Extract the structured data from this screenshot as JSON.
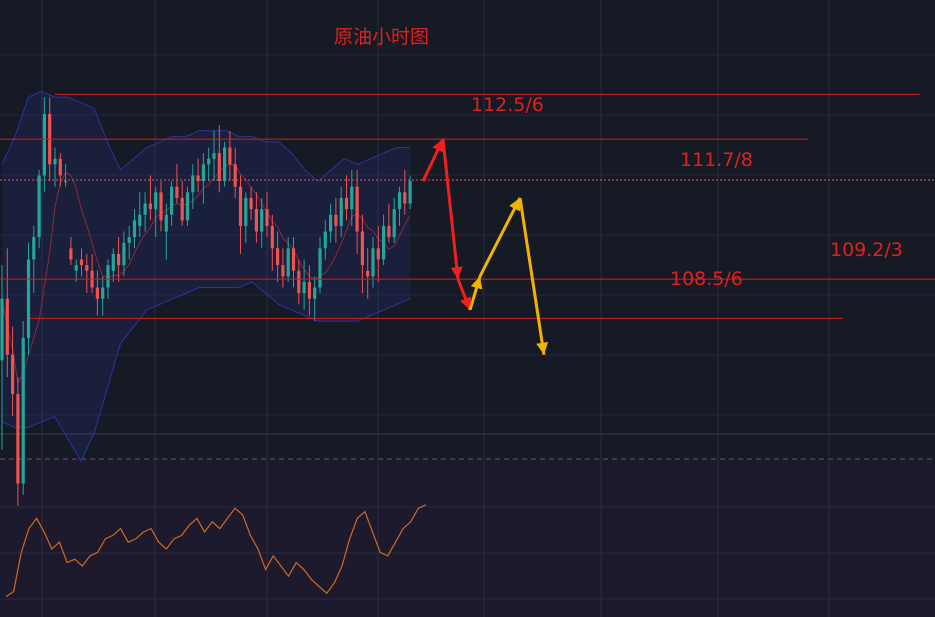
{
  "title": "原油小时图",
  "levels": [
    {
      "label": "112.5/6",
      "value": 112.55
    },
    {
      "label": "111.7/8",
      "value": 111.75
    },
    {
      "label": "109.2/3",
      "value": 109.25
    },
    {
      "label": "108.5/6",
      "value": 108.55
    }
  ],
  "colors": {
    "background": "#161a25",
    "level_line": "#d0201e",
    "level_text": "#e0201e",
    "bull": "#26a69a",
    "bear": "#ef5350",
    "band": "#2a35a0",
    "forecast_red": "#f0201e",
    "forecast_yellow": "#f0b400",
    "oscillator": "#d06a1e",
    "current_price": "#e05a5a"
  },
  "chart_data": {
    "type": "candlestick",
    "title": "原油小时图",
    "current_price": 111.02,
    "upper_band": [
      111.3,
      111.8,
      112.5,
      112.6,
      112.5,
      112.5,
      112.4,
      112.3,
      111.7,
      111.2,
      111.4,
      111.6,
      111.7,
      111.8,
      111.8,
      111.9,
      111.9,
      111.9,
      111.8,
      111.8,
      111.7,
      111.7,
      111.5,
      111.2,
      111.0,
      111.2,
      111.4,
      111.3,
      111.4,
      111.5,
      111.6,
      111.6
    ],
    "lower_band": [
      106.7,
      106.6,
      106.6,
      106.7,
      106.8,
      106.4,
      106.0,
      106.5,
      107.3,
      108.1,
      108.4,
      108.7,
      108.8,
      108.9,
      109.0,
      109.1,
      109.1,
      109.1,
      109.1,
      109.2,
      109.0,
      108.8,
      108.7,
      108.6,
      108.5,
      108.5,
      108.5,
      108.5,
      108.6,
      108.7,
      108.8,
      108.9
    ],
    "candles": [
      [
        107.8,
        109.5,
        106.2,
        108.9
      ],
      [
        108.9,
        109.8,
        107.5,
        107.9
      ],
      [
        107.9,
        108.4,
        106.8,
        107.2
      ],
      [
        107.2,
        107.5,
        105.2,
        105.6
      ],
      [
        105.6,
        108.5,
        105.4,
        108.2
      ],
      [
        108.2,
        109.9,
        107.9,
        109.6
      ],
      [
        109.6,
        110.2,
        109.0,
        110.0
      ],
      [
        110.0,
        111.2,
        109.8,
        111.1
      ],
      [
        111.1,
        112.5,
        110.8,
        112.2
      ],
      [
        112.2,
        112.5,
        111.0,
        111.3
      ],
      [
        111.3,
        111.6,
        110.9,
        111.4
      ],
      [
        111.4,
        111.5,
        110.9,
        111.1
      ],
      [
        111.0,
        111.3,
        110.9,
        111.0
      ],
      [
        109.8,
        110.0,
        109.5,
        109.6
      ],
      [
        109.4,
        109.6,
        109.2,
        109.5
      ],
      [
        109.6,
        109.8,
        109.3,
        109.5
      ],
      [
        109.5,
        109.7,
        109.0,
        109.4
      ],
      [
        109.4,
        109.7,
        109.0,
        109.1
      ],
      [
        109.1,
        109.4,
        108.6,
        108.9
      ],
      [
        108.9,
        109.3,
        108.6,
        109.1
      ],
      [
        109.1,
        109.6,
        108.9,
        109.5
      ],
      [
        109.4,
        109.8,
        109.2,
        109.7
      ],
      [
        109.7,
        110.0,
        109.2,
        109.5
      ],
      [
        109.5,
        110.1,
        109.3,
        109.9
      ],
      [
        109.9,
        110.2,
        109.6,
        110.0
      ],
      [
        110.0,
        110.5,
        109.8,
        110.3
      ],
      [
        110.2,
        110.8,
        110.0,
        110.4
      ],
      [
        110.4,
        110.8,
        110.1,
        110.6
      ],
      [
        110.6,
        111.1,
        110.3,
        110.5
      ],
      [
        110.5,
        110.9,
        110.0,
        110.8
      ],
      [
        110.8,
        111.0,
        110.1,
        110.3
      ],
      [
        110.1,
        110.6,
        109.6,
        110.4
      ],
      [
        110.4,
        111.0,
        110.2,
        110.9
      ],
      [
        110.9,
        111.3,
        110.6,
        110.7
      ],
      [
        110.7,
        111.0,
        110.2,
        110.3
      ],
      [
        110.3,
        110.9,
        110.2,
        110.8
      ],
      [
        110.8,
        111.3,
        110.5,
        111.1
      ],
      [
        111.1,
        111.4,
        110.8,
        111.0
      ],
      [
        111.0,
        111.5,
        110.6,
        111.3
      ],
      [
        111.3,
        111.6,
        111.0,
        111.4
      ],
      [
        111.4,
        111.9,
        111.0,
        111.5
      ],
      [
        111.5,
        112.0,
        110.8,
        111.0
      ],
      [
        111.0,
        111.7,
        110.9,
        111.6
      ],
      [
        111.6,
        111.9,
        111.0,
        111.3
      ],
      [
        111.3,
        111.6,
        110.7,
        110.9
      ],
      [
        110.9,
        111.1,
        109.7,
        110.2
      ],
      [
        110.2,
        110.8,
        109.9,
        110.7
      ],
      [
        110.7,
        110.9,
        110.3,
        110.5
      ],
      [
        110.5,
        110.8,
        109.9,
        110.1
      ],
      [
        110.1,
        110.7,
        109.8,
        110.5
      ],
      [
        110.5,
        110.8,
        110.0,
        110.2
      ],
      [
        110.2,
        110.4,
        109.4,
        109.8
      ],
      [
        109.8,
        110.1,
        109.2,
        109.5
      ],
      [
        109.5,
        109.8,
        109.1,
        109.3
      ],
      [
        109.3,
        110.0,
        109.2,
        109.8
      ],
      [
        109.8,
        110.0,
        109.1,
        109.4
      ],
      [
        109.4,
        109.6,
        108.8,
        109.0
      ],
      [
        109.0,
        109.6,
        108.7,
        109.2
      ],
      [
        109.2,
        109.5,
        108.6,
        108.9
      ],
      [
        108.9,
        109.3,
        108.5,
        109.1
      ],
      [
        109.1,
        110.0,
        109.0,
        109.8
      ],
      [
        109.8,
        110.3,
        109.6,
        110.1
      ],
      [
        110.1,
        110.6,
        109.9,
        110.4
      ],
      [
        110.4,
        110.7,
        109.9,
        110.2
      ],
      [
        110.2,
        110.9,
        110.0,
        110.7
      ],
      [
        110.7,
        111.1,
        110.3,
        110.5
      ],
      [
        110.5,
        111.2,
        110.2,
        110.9
      ],
      [
        110.9,
        111.2,
        109.7,
        110.1
      ],
      [
        110.1,
        110.4,
        109.0,
        109.5
      ],
      [
        109.4,
        109.8,
        108.9,
        109.3
      ],
      [
        109.3,
        110.0,
        109.1,
        109.8
      ],
      [
        109.8,
        110.2,
        109.2,
        109.6
      ],
      [
        109.6,
        110.4,
        109.5,
        110.2
      ],
      [
        110.2,
        110.6,
        109.9,
        110.0
      ],
      [
        110.0,
        110.7,
        109.9,
        110.5
      ],
      [
        110.5,
        110.9,
        110.2,
        110.8
      ],
      [
        110.8,
        111.2,
        110.4,
        110.6
      ],
      [
        110.6,
        111.1,
        110.5,
        111.0
      ]
    ],
    "oscillator": [
      12,
      15,
      38,
      52,
      58,
      50,
      40,
      44,
      32,
      34,
      30,
      36,
      38,
      46,
      48,
      52,
      44,
      46,
      50,
      52,
      44,
      40,
      46,
      48,
      54,
      58,
      50,
      56,
      52,
      58,
      64,
      60,
      48,
      40,
      28,
      36,
      30,
      24,
      32,
      28,
      22,
      18,
      14,
      20,
      30,
      46,
      58,
      62,
      50,
      38,
      36,
      44,
      52,
      56,
      64,
      66
    ],
    "forecast_path": {
      "red": [
        111.0,
        111.75,
        109.25,
        108.7
      ],
      "yellow": [
        108.7,
        109.3,
        110.7,
        107.9
      ]
    }
  }
}
